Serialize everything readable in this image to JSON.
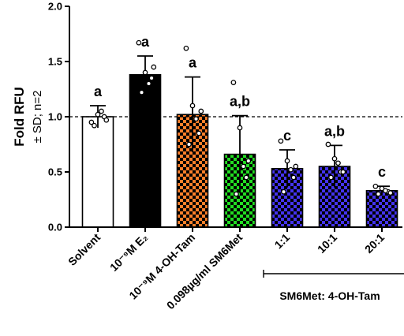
{
  "chart_data": {
    "type": "bar",
    "ylabel": "Fold RFU",
    "ylabel2": "± SD; n=2",
    "ylim": [
      0,
      2.0
    ],
    "yticks": [
      0.0,
      0.5,
      1.0,
      1.5,
      2.0
    ],
    "ytick_labels": [
      "0.0",
      "0.5",
      "1.0",
      "1.5",
      "2.0"
    ],
    "reference_line": 1.0,
    "group_label": "SM6Met: 4-OH-Tam",
    "categories": [
      "Solvent",
      "10⁻⁹M E₂",
      "10⁻⁹M 4-OH-Tam",
      "0.098µg/ml SM6Met",
      "1:1",
      "10:1",
      "20:1"
    ],
    "values": [
      1.0,
      1.38,
      1.02,
      0.66,
      0.53,
      0.55,
      0.33
    ],
    "errors": [
      0.1,
      0.17,
      0.34,
      0.35,
      0.17,
      0.19,
      0.04
    ],
    "significance": [
      "a",
      "a",
      "a",
      "a,b",
      "c",
      "a,b",
      "c"
    ],
    "points": [
      [
        0.95,
        1.02,
        1.0,
        0.92,
        1.05,
        0.97
      ],
      [
        1.67,
        1.4,
        1.35,
        1.22,
        1.3,
        1.45
      ],
      [
        1.62,
        1.1,
        0.85,
        0.75,
        0.98,
        1.05
      ],
      [
        1.31,
        0.9,
        0.45,
        0.3,
        0.55,
        0.6
      ],
      [
        0.78,
        0.6,
        0.45,
        0.32,
        0.52,
        0.55
      ],
      [
        0.75,
        0.62,
        0.5,
        0.45,
        0.58,
        0.5
      ],
      [
        0.37,
        0.35,
        0.32,
        0.3,
        0.33,
        0.31
      ]
    ],
    "colors": {
      "solvent": "#ffffff",
      "e2": "#000000",
      "tam": "#ff7f2a",
      "sm6met": "#22dd22",
      "combo": "#4433ee"
    },
    "grid": false
  }
}
